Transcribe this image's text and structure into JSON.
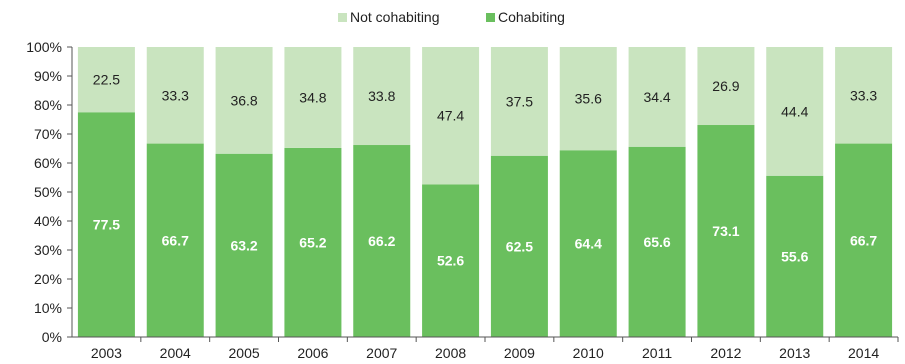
{
  "chart_data": {
    "type": "bar",
    "stacked": true,
    "percent_scale": true,
    "categories": [
      "2003",
      "2004",
      "2005",
      "2006",
      "2007",
      "2008",
      "2009",
      "2010",
      "2011",
      "2012",
      "2013",
      "2014"
    ],
    "series": [
      {
        "name": "Cohabiting",
        "values": [
          77.5,
          66.7,
          63.2,
          65.2,
          66.2,
          52.6,
          62.5,
          64.4,
          65.6,
          73.1,
          55.6,
          66.7
        ],
        "color": "#6abf5e"
      },
      {
        "name": "Not cohabiting",
        "values": [
          22.5,
          33.3,
          36.8,
          34.8,
          33.8,
          47.4,
          37.5,
          35.6,
          34.4,
          26.9,
          44.4,
          33.3
        ],
        "color": "#c9e4bf"
      }
    ],
    "legend": [
      "Not cohabiting",
      "Cohabiting"
    ],
    "legend_position": "top-center",
    "y_ticks": [
      "0%",
      "10%",
      "20%",
      "30%",
      "40%",
      "50%",
      "60%",
      "70%",
      "80%",
      "90%",
      "100%"
    ],
    "ylim": [
      0,
      100
    ],
    "grid": false
  }
}
